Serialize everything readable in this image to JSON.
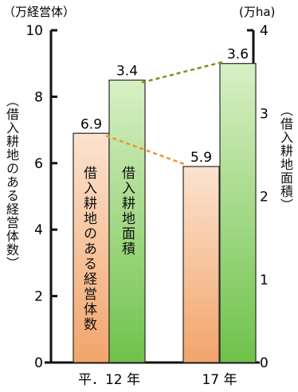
{
  "chart_data": {
    "type": "bar",
    "categories": [
      "平．12 年",
      "17 年"
    ],
    "series": [
      {
        "name": "借入耕地のある経営体数",
        "values": [
          6.9,
          5.9
        ],
        "axis": "left",
        "color_top": "#fbe3cf",
        "color_bottom": "#f2a46b"
      },
      {
        "name": "借入耕地面積",
        "values": [
          3.4,
          3.6
        ],
        "axis": "right",
        "color_top": "#d8f0c5",
        "color_bottom": "#6fc24a"
      }
    ],
    "left_unit": "（万経営体）",
    "right_unit": "(万ha)",
    "left_ylabel": "（借入耕地のある経営体数）",
    "right_ylabel": "（借入耕地面積）",
    "left_ylim": [
      0,
      10
    ],
    "right_ylim": [
      0,
      4
    ],
    "left_ticks": [
      0,
      2,
      4,
      6,
      8,
      10
    ],
    "right_ticks": [
      0,
      1,
      2,
      3,
      4
    ],
    "data_labels": [
      "6.9",
      "3.4",
      "5.9",
      "3.6"
    ],
    "trend_line_colors": [
      "#f0932b",
      "#8a8a1a"
    ],
    "grid": false,
    "legend": "labels inside bars"
  }
}
